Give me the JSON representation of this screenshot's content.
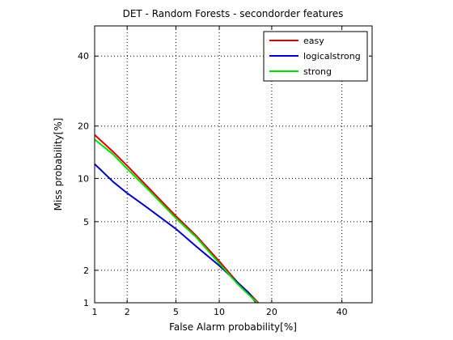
{
  "chart_data": {
    "type": "line",
    "title": "DET - Random Forests - secondorder features",
    "xlabel": "False Alarm probability[%]",
    "ylabel": "Miss probability[%]",
    "x_scale": "probit",
    "y_scale": "probit",
    "xlim": [
      1,
      50
    ],
    "ylim": [
      1,
      50
    ],
    "x_ticks": [
      1,
      2,
      5,
      10,
      20,
      40
    ],
    "y_ticks": [
      1,
      2,
      5,
      10,
      20,
      40
    ],
    "grid": "dotted",
    "legend_position": "top-right",
    "series": [
      {
        "name": "easy",
        "color": "#e00000",
        "x": [
          1.0,
          1.5,
          2.0,
          3.0,
          5.0,
          7.0,
          10.0,
          13.0,
          15.0,
          17.0
        ],
        "y": [
          18.0,
          14.5,
          12.0,
          8.8,
          5.5,
          3.9,
          2.4,
          1.55,
          1.25,
          1.0
        ]
      },
      {
        "name": "logicalstrong",
        "color": "#0000cc",
        "x": [
          1.0,
          1.5,
          2.0,
          3.0,
          5.0,
          7.0,
          10.0,
          13.0,
          15.0,
          16.5
        ],
        "y": [
          12.3,
          9.5,
          8.0,
          6.3,
          4.4,
          3.2,
          2.2,
          1.55,
          1.25,
          1.0
        ]
      },
      {
        "name": "strong",
        "color": "#00e000",
        "x": [
          1.0,
          1.5,
          2.0,
          3.0,
          5.0,
          7.0,
          10.0,
          13.0,
          15.0,
          16.8
        ],
        "y": [
          17.0,
          14.0,
          11.5,
          8.5,
          5.3,
          3.8,
          2.3,
          1.5,
          1.2,
          1.0
        ]
      }
    ]
  }
}
